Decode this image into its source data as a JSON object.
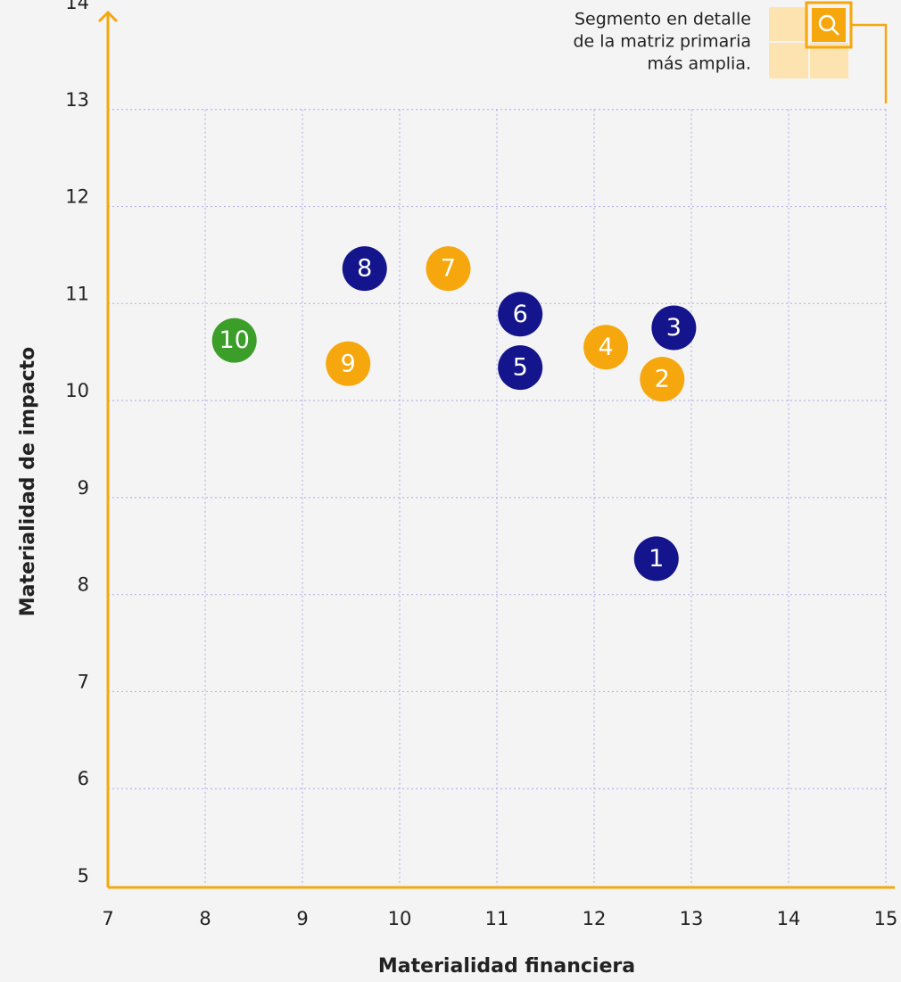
{
  "chart_data": {
    "type": "scatter",
    "x_label": "Materialidad financiera",
    "y_label": "Materialidad de impacto",
    "annotation": [
      "Segmento en detalle",
      "de la matriz primaria",
      "más amplia."
    ],
    "point_labels": [
      "1",
      "2",
      "3",
      "4",
      "5",
      "6",
      "7",
      "8",
      "9",
      "10"
    ],
    "x": [
      12.64,
      12.7,
      12.82,
      12.12,
      11.24,
      11.24,
      10.5,
      9.64,
      9.47,
      8.3
    ],
    "values": [
      8.37,
      10.22,
      10.75,
      10.55,
      10.34,
      10.89,
      11.36,
      11.36,
      10.38,
      10.62
    ],
    "colors": [
      "#14148c",
      "#f5a70d",
      "#14148c",
      "#f5a70d",
      "#14148c",
      "#14148c",
      "#f5a70d",
      "#14148c",
      "#f5a70d",
      "#3b9e28"
    ],
    "xlim": [
      7,
      15
    ],
    "xticks": [
      7,
      8,
      9,
      10,
      11,
      12,
      13,
      14,
      15
    ],
    "ylim": [
      5,
      14
    ],
    "yticks": [
      5,
      6,
      7,
      8,
      9,
      10,
      11,
      12,
      13,
      14
    ],
    "grid": true,
    "axis_color": "#f5a70d"
  }
}
